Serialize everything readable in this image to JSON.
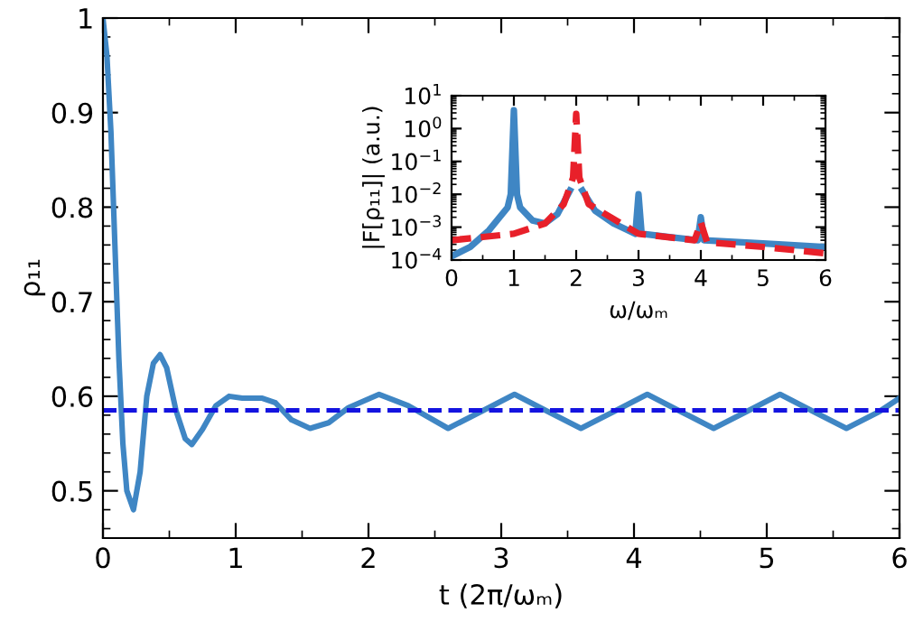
{
  "chart_data": [
    {
      "type": "line",
      "xlabel": "t (2π/ωₘ)",
      "ylabel": "ρ₁₁",
      "xlim": [
        0,
        6
      ],
      "ylim": [
        0.45,
        1
      ],
      "xticks": [
        0,
        1,
        2,
        3,
        4,
        5,
        6
      ],
      "yticks": [
        0.5,
        0.6,
        0.7,
        0.8,
        0.9,
        1
      ],
      "grid": false,
      "legend": false,
      "marker": "none",
      "x": [
        0,
        0.03,
        0.06,
        0.09,
        0.12,
        0.15,
        0.18,
        0.23,
        0.28,
        0.33,
        0.38,
        0.43,
        0.48,
        0.55,
        0.62,
        0.67,
        0.75,
        0.85,
        0.95,
        1.05,
        1.2,
        1.3,
        1.42,
        1.56,
        1.7,
        1.85,
        2.08,
        2.3,
        2.6,
        2.85,
        3.1,
        3.35,
        3.6,
        3.85,
        4.1,
        4.35,
        4.6,
        4.85,
        5.1,
        5.35,
        5.6,
        5.85,
        6
      ],
      "series": [
        {
          "color": "#3f86c4",
          "line_style": "solid",
          "values": [
            1.0,
            0.96,
            0.88,
            0.76,
            0.64,
            0.55,
            0.5,
            0.48,
            0.52,
            0.6,
            0.635,
            0.644,
            0.63,
            0.585,
            0.555,
            0.549,
            0.565,
            0.59,
            0.6,
            0.598,
            0.598,
            0.593,
            0.575,
            0.566,
            0.572,
            0.588,
            0.602,
            0.59,
            0.566,
            0.584,
            0.602,
            0.584,
            0.566,
            0.584,
            0.602,
            0.584,
            0.566,
            0.584,
            0.602,
            0.584,
            0.566,
            0.584,
            0.598
          ]
        }
      ],
      "ref_lines": [
        {
          "axis": "y",
          "value": 0.585,
          "color": "#1414e0",
          "line_style": "dashed"
        }
      ]
    },
    {
      "type": "line",
      "xlabel": "ω/ωₘ",
      "ylabel": "|F[ρ₁₁]| (a.u.)",
      "log": "y",
      "xlim": [
        0,
        6
      ],
      "ylim": [
        0.0001,
        10
      ],
      "xticks": [
        0,
        1,
        2,
        3,
        4,
        5,
        6
      ],
      "yticks": [
        {
          "value": 10,
          "label": "10$^{1}$"
        },
        {
          "value": 1,
          "label": "10$^{0}$"
        },
        {
          "value": 0.1,
          "label": "10$^{−1}$"
        },
        {
          "value": 0.01,
          "label": "10$^{−2}$"
        },
        {
          "value": 0.001,
          "label": "10$^{−3}$"
        },
        {
          "value": 0.0001,
          "label": "10$^{−4}$"
        }
      ],
      "grid": false,
      "legend": false,
      "marker": "none",
      "series": [
        {
          "color": "#3f86c4",
          "line_style": "solid",
          "x": [
            0,
            0.3,
            0.6,
            0.9,
            0.95,
            1.0,
            1.05,
            1.1,
            1.3,
            1.5,
            1.7,
            1.9,
            2.0,
            2.1,
            2.3,
            2.6,
            2.95,
            3.0,
            3.05,
            3.5,
            3.95,
            4.0,
            4.05,
            5,
            6
          ],
          "values": [
            0.00013,
            0.00025,
            0.0008,
            0.004,
            0.01,
            3.6,
            0.01,
            0.004,
            0.0016,
            0.0013,
            0.0025,
            0.013,
            null,
            0.013,
            0.0032,
            0.0013,
            0.00063,
            0.01,
            0.00063,
            0.0005,
            0.0004,
            0.002,
            0.0004,
            0.00032,
            0.00025
          ]
        },
        {
          "color": "#e8202a",
          "line_style": "dashed",
          "x": [
            0,
            1,
            1.5,
            1.8,
            1.95,
            2.0,
            2.05,
            2.2,
            3,
            3.9,
            4.0,
            4.1,
            5,
            6
          ],
          "values": [
            0.0004,
            0.00063,
            0.0013,
            0.005,
            0.032,
            2.8,
            0.032,
            0.005,
            0.00063,
            0.0004,
            0.0014,
            0.00035,
            0.00025,
            0.00016
          ]
        }
      ]
    }
  ]
}
